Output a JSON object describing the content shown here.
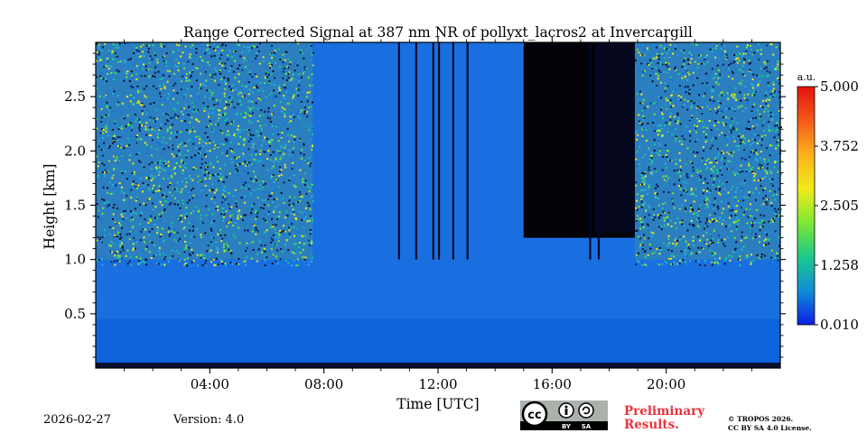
{
  "chart_data": {
    "type": "heatmap",
    "title": "Range Corrected Signal at 387 nm NR of pollyxt_lacros2 at Invercargill",
    "xlabel": "Time [UTC]",
    "ylabel": "Height [km]",
    "xlim_hours": [
      0,
      24
    ],
    "ylim_km": [
      0,
      3.0
    ],
    "x_ticks": [
      {
        "hours": 4,
        "label": "04:00"
      },
      {
        "hours": 8,
        "label": "08:00"
      },
      {
        "hours": 12,
        "label": "12:00"
      },
      {
        "hours": 16,
        "label": "16:00"
      },
      {
        "hours": 20,
        "label": "20:00"
      }
    ],
    "y_ticks": [
      {
        "km": 0.5,
        "label": "0.5"
      },
      {
        "km": 1.0,
        "label": "1.0"
      },
      {
        "km": 1.5,
        "label": "1.5"
      },
      {
        "km": 2.0,
        "label": "2.0"
      },
      {
        "km": 2.5,
        "label": "2.5"
      }
    ],
    "colorbar": {
      "unit": "a.u.",
      "min": 0.01,
      "max": 5.0,
      "ticks": [
        "5.000",
        "3.752",
        "2.505",
        "1.258",
        "0.010"
      ],
      "colors": [
        "#0d1fe6",
        "#0f8ed6",
        "#1ec98c",
        "#7ee832",
        "#f2ea1a",
        "#fbb21c",
        "#f5591a",
        "#e3130f"
      ]
    },
    "regions": [
      {
        "name": "noisy-sky-morning",
        "start_h": 0.0,
        "end_h": 7.6,
        "description_value": "high noise above 1 km"
      },
      {
        "name": "clean-sky-midday",
        "start_h": 7.6,
        "end_h": 15.0,
        "description_value": "low signal"
      },
      {
        "name": "no-signal-afternoon",
        "start_h": 15.0,
        "end_h": 18.9,
        "cloud_base_km": 1.2
      },
      {
        "name": "noisy-sky-evening",
        "start_h": 18.9,
        "end_h": 24.0,
        "description_value": "high noise above 1 km"
      }
    ],
    "signal_gaps_hours": [
      10.6,
      11.2,
      11.8,
      12.0,
      12.5,
      13.0,
      17.3,
      17.6
    ]
  },
  "footer": {
    "date": "2026-02-27",
    "version": "Version: 4.0",
    "preliminary_line1": "Preliminary",
    "preliminary_line2": "Results.",
    "copyright_line1": "© TROPOS 2026.",
    "copyright_line2": "CC BY SA 4.0 License.",
    "cc_label": "cc",
    "by_label": "BY",
    "sa_label": "SA"
  }
}
